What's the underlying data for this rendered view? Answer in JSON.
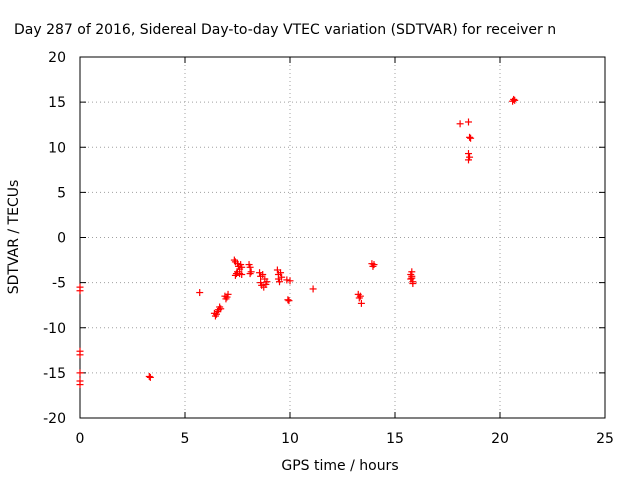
{
  "chart_data": {
    "type": "scatter",
    "title": "Day 287 of 2016, Sidereal Day-to-day VTEC variation (SDTVAR) for receiver n",
    "xlabel": "GPS time / hours",
    "ylabel": "SDTVAR / TECUs",
    "xlim": [
      0,
      25
    ],
    "ylim": [
      -20,
      20
    ],
    "xticks": [
      0,
      5,
      10,
      15,
      20,
      25
    ],
    "yticks": [
      -20,
      -15,
      -10,
      -5,
      0,
      5,
      10,
      15,
      20
    ],
    "x_tick_labels": [
      "0",
      "5",
      "10",
      "15",
      "20",
      "25"
    ],
    "y_tick_labels": [
      "-20",
      "-15",
      "-10",
      "-5",
      "0",
      "5",
      "10",
      "15",
      "20"
    ],
    "grid": true,
    "marker": "+",
    "series": [
      {
        "name": "SDTVAR",
        "color": "#ff0000",
        "points": [
          [
            0.0,
            -5.5
          ],
          [
            0.0,
            -5.9
          ],
          [
            0.0,
            -12.6
          ],
          [
            0.0,
            -13.0
          ],
          [
            0.0,
            -15.0
          ],
          [
            0.0,
            -15.9
          ],
          [
            0.0,
            -16.3
          ],
          [
            3.3,
            -15.4
          ],
          [
            3.35,
            -15.5
          ],
          [
            5.7,
            -6.1
          ],
          [
            6.4,
            -8.4
          ],
          [
            6.45,
            -8.7
          ],
          [
            6.5,
            -8.5
          ],
          [
            6.55,
            -8.2
          ],
          [
            6.6,
            -8.0
          ],
          [
            6.65,
            -7.7
          ],
          [
            6.7,
            -7.9
          ],
          [
            6.9,
            -6.5
          ],
          [
            6.95,
            -6.8
          ],
          [
            7.0,
            -6.6
          ],
          [
            7.05,
            -6.3
          ],
          [
            7.35,
            -2.5
          ],
          [
            7.4,
            -2.7
          ],
          [
            7.4,
            -4.2
          ],
          [
            7.45,
            -4.0
          ],
          [
            7.5,
            -3.8
          ],
          [
            7.5,
            -2.9
          ],
          [
            7.55,
            -3.2
          ],
          [
            7.6,
            -3.5
          ],
          [
            7.6,
            -4.0
          ],
          [
            7.65,
            -3.0
          ],
          [
            7.7,
            -3.3
          ],
          [
            7.7,
            -4.1
          ],
          [
            8.05,
            -3.0
          ],
          [
            8.1,
            -3.3
          ],
          [
            8.1,
            -4.0
          ],
          [
            8.15,
            -3.8
          ],
          [
            8.55,
            -3.9
          ],
          [
            8.6,
            -4.3
          ],
          [
            8.6,
            -5.0
          ],
          [
            8.65,
            -5.3
          ],
          [
            8.7,
            -4.1
          ],
          [
            8.75,
            -5.5
          ],
          [
            8.8,
            -4.6
          ],
          [
            8.85,
            -5.2
          ],
          [
            8.9,
            -4.9
          ],
          [
            9.4,
            -3.6
          ],
          [
            9.45,
            -4.1
          ],
          [
            9.45,
            -4.6
          ],
          [
            9.5,
            -4.9
          ],
          [
            9.55,
            -3.9
          ],
          [
            9.6,
            -4.4
          ],
          [
            9.85,
            -4.7
          ],
          [
            9.9,
            -6.9
          ],
          [
            9.95,
            -7.0
          ],
          [
            10.0,
            -4.8
          ],
          [
            11.1,
            -5.7
          ],
          [
            13.25,
            -6.3
          ],
          [
            13.3,
            -6.7
          ],
          [
            13.35,
            -6.5
          ],
          [
            13.4,
            -7.3
          ],
          [
            13.9,
            -2.9
          ],
          [
            13.95,
            -3.2
          ],
          [
            14.0,
            -3.0
          ],
          [
            15.75,
            -4.1
          ],
          [
            15.75,
            -4.6
          ],
          [
            15.8,
            -3.8
          ],
          [
            15.8,
            -4.3
          ],
          [
            15.85,
            -4.9
          ],
          [
            15.85,
            -5.1
          ],
          [
            15.8,
            -4.5
          ],
          [
            18.1,
            12.6
          ],
          [
            18.5,
            12.8
          ],
          [
            18.55,
            11.1
          ],
          [
            18.6,
            11.0
          ],
          [
            18.5,
            9.3
          ],
          [
            18.55,
            8.9
          ],
          [
            18.5,
            8.6
          ],
          [
            20.6,
            15.1
          ],
          [
            20.65,
            15.3
          ],
          [
            20.7,
            15.2
          ]
        ]
      }
    ]
  }
}
